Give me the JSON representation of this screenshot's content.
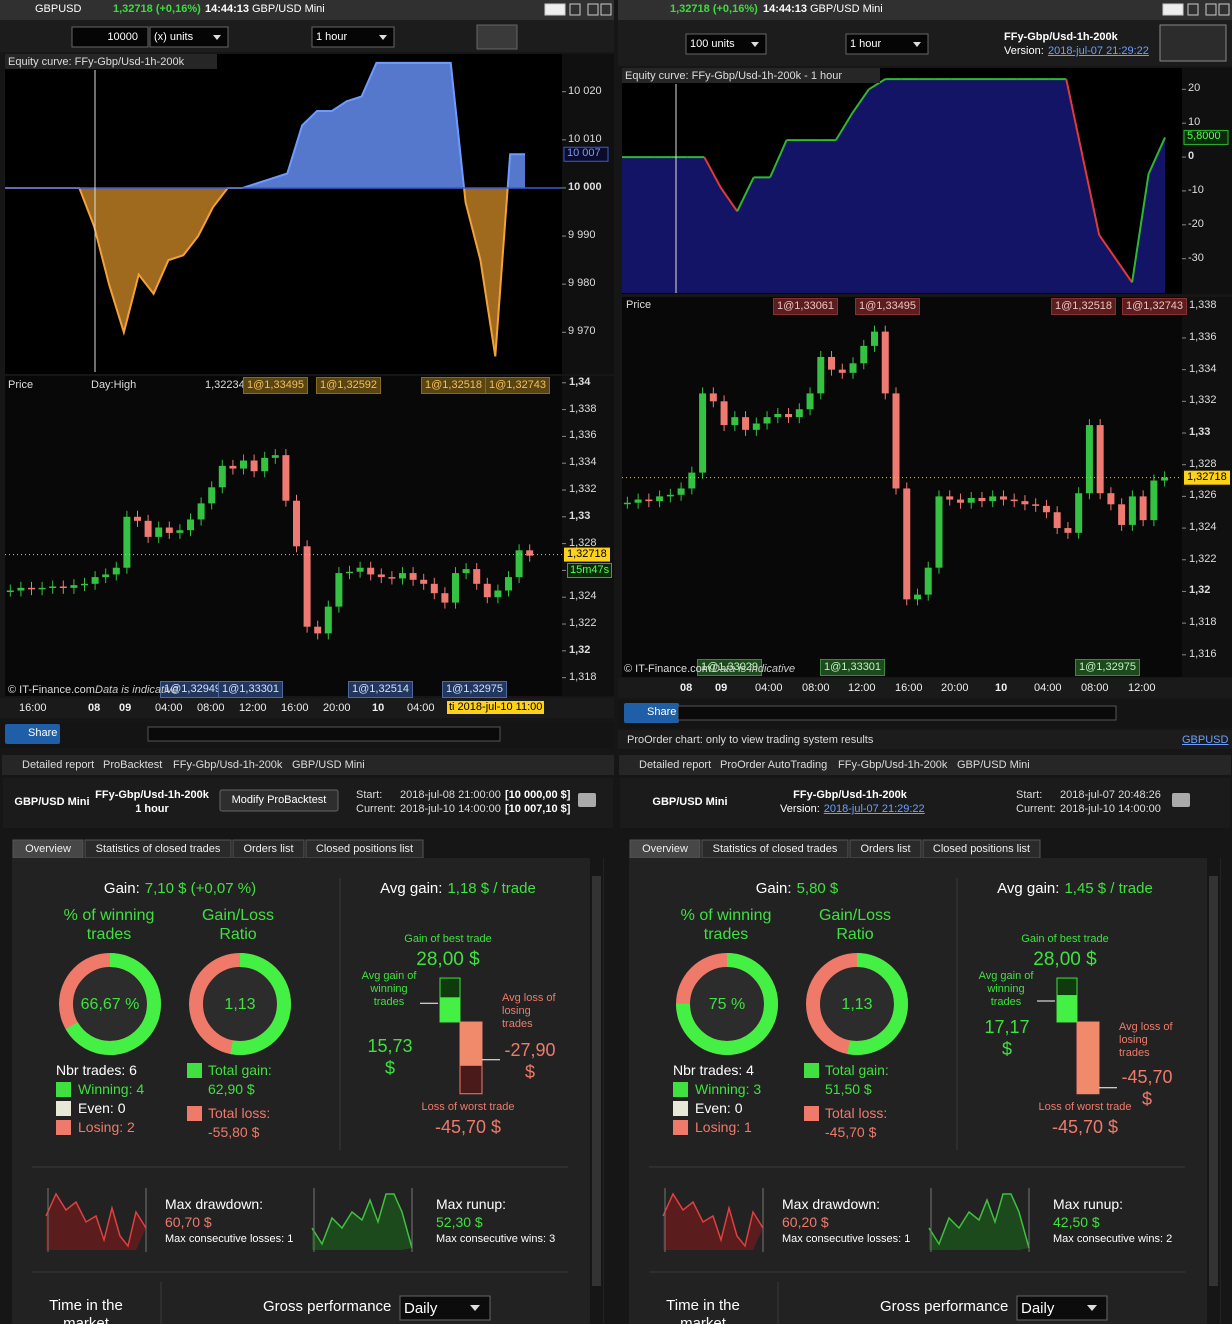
{
  "left": {
    "bar": {
      "symbol": "GBPUSD",
      "price": "1,32718 (+0,16%)",
      "time": "14:44:13",
      "name": "GBP/USD Mini"
    },
    "toolbar": {
      "units": "10000",
      "units_type": "(x) units",
      "timeframe": "1 hour"
    },
    "equity": {
      "label": "Equity curve: FFy-Gbp/Usd-1h-200k",
      "ylim": [
        9963,
        10027
      ],
      "yticks": [
        {
          "value": 10020,
          "label": "10 020"
        },
        {
          "value": 10010,
          "label": "10 010"
        },
        {
          "value": 10000,
          "label": "10 000"
        },
        {
          "value": 9990,
          "label": "9 990"
        },
        {
          "value": 9980,
          "label": "9 980"
        },
        {
          "value": 9970,
          "label": "9 970"
        }
      ],
      "current": {
        "value": 10007,
        "label": "10 007"
      },
      "values": [
        10000,
        10000,
        10000,
        10000,
        10000,
        10000,
        9992,
        9980,
        9970,
        9982,
        9978,
        9985,
        9986,
        9990,
        9996,
        10000,
        10000,
        10001,
        10002,
        10003,
        10013,
        10016,
        10016,
        10018,
        10019,
        10026,
        10026,
        10026,
        10026,
        10026,
        10026,
        9997,
        9985,
        9965,
        10007,
        10007
      ]
    },
    "price": {
      "label": "Price",
      "day_high": "Day:High",
      "day_value": "1,32234",
      "ylim": [
        1.3176,
        1.3414
      ],
      "yticks": [
        {
          "value": 1.34,
          "label": "1,34"
        },
        {
          "value": 1.338,
          "label": "1,338"
        },
        {
          "value": 1.336,
          "label": "1,336"
        },
        {
          "value": 1.334,
          "label": "1,334"
        },
        {
          "value": 1.332,
          "label": "1,332"
        },
        {
          "value": 1.33,
          "label": "1,33"
        },
        {
          "value": 1.328,
          "label": "1,328"
        },
        {
          "value": 1.326,
          "label": "1,326"
        },
        {
          "value": 1.324,
          "label": "1,324"
        },
        {
          "value": 1.322,
          "label": "1,322"
        },
        {
          "value": 1.32,
          "label": "1,32"
        },
        {
          "value": 1.318,
          "label": "1,318"
        }
      ],
      "closes": [
        1.3245,
        1.3247,
        1.3246,
        1.3247,
        1.3248,
        1.3247,
        1.3249,
        1.325,
        1.3255,
        1.3257,
        1.3262,
        1.33,
        1.3297,
        1.3285,
        1.3292,
        1.3288,
        1.329,
        1.3298,
        1.331,
        1.3322,
        1.3338,
        1.3336,
        1.3342,
        1.3334,
        1.3344,
        1.3346,
        1.3312,
        1.3278,
        1.3218,
        1.3213,
        1.3233,
        1.3258,
        1.3259,
        1.3262,
        1.3257,
        1.3255,
        1.3254,
        1.3258,
        1.3253,
        1.325,
        1.3243,
        1.3236,
        1.3258,
        1.3261,
        1.325,
        1.324,
        1.3245,
        1.3255,
        1.3275,
        1.3271
      ],
      "current": {
        "value": 1.32718,
        "label": "1,32718"
      },
      "countdown": "15m47s",
      "orders_top": [
        "1@1,33495",
        "1@1,32592",
        "1@1,32518",
        "1@1,32743"
      ],
      "orders_bottom": [
        "1@1,32949",
        "1@1,33301",
        "1@1,32514",
        "1@1,32975"
      ],
      "copyright": "© IT-Finance.com",
      "disclaimer": "Data is indicative",
      "xlabels": [
        "16:00",
        "08",
        "09",
        "04:00",
        "08:00",
        "12:00",
        "16:00",
        "20:00",
        "10",
        "04:00"
      ],
      "cursor_time": "ti 2018-jul-10 11:00"
    },
    "share": "Share"
  },
  "right": {
    "bar": {
      "price": "1,32718 (+0,16%)",
      "time": "14:44:13",
      "name": "GBP/USD Mini"
    },
    "toolbar": {
      "units": "100 units",
      "timeframe": "1 hour"
    },
    "system": {
      "name": "FFy-Gbp/Usd-1h-200k",
      "version_label": "Version:",
      "version": "2018-jul-07 21:29:22"
    },
    "equity": {
      "label": "Equity curve: FFy-Gbp/Usd-1h-200k - 1 hour",
      "ylim": [
        -36,
        26
      ],
      "yticks": [
        20,
        10,
        0,
        -10,
        -20,
        -30
      ],
      "current": {
        "value": 5.8,
        "label": "5,8000"
      },
      "values": [
        0,
        0,
        0,
        0,
        0,
        0,
        -9,
        -16,
        -6,
        -6,
        5,
        5,
        5,
        5,
        13,
        20,
        23,
        23,
        23,
        23,
        23,
        23,
        23,
        23,
        23,
        23,
        23,
        23,
        0,
        -23,
        -30,
        -37,
        -5,
        5.8
      ]
    },
    "price": {
      "label": "Price",
      "ylim": [
        1.3146,
        1.3389
      ],
      "yticks": [
        {
          "value": 1.338,
          "label": "1,338"
        },
        {
          "value": 1.336,
          "label": "1,336"
        },
        {
          "value": 1.334,
          "label": "1,334"
        },
        {
          "value": 1.332,
          "label": "1,332"
        },
        {
          "value": 1.33,
          "label": "1,33"
        },
        {
          "value": 1.328,
          "label": "1,328"
        },
        {
          "value": 1.326,
          "label": "1,326"
        },
        {
          "value": 1.324,
          "label": "1,324"
        },
        {
          "value": 1.322,
          "label": "1,322"
        },
        {
          "value": 1.32,
          "label": "1,32"
        },
        {
          "value": 1.318,
          "label": "1,318"
        },
        {
          "value": 1.316,
          "label": "1,316"
        }
      ],
      "closes": [
        1.3256,
        1.3258,
        1.3257,
        1.326,
        1.3261,
        1.3265,
        1.3275,
        1.3325,
        1.332,
        1.3305,
        1.331,
        1.3302,
        1.3306,
        1.331,
        1.3312,
        1.331,
        1.3315,
        1.3325,
        1.3348,
        1.334,
        1.3338,
        1.3344,
        1.3355,
        1.3364,
        1.3325,
        1.3265,
        1.3195,
        1.3198,
        1.3215,
        1.326,
        1.3258,
        1.3256,
        1.3259,
        1.3257,
        1.326,
        1.3258,
        1.3257,
        1.3255,
        1.3254,
        1.325,
        1.324,
        1.3237,
        1.3262,
        1.3305,
        1.3262,
        1.3255,
        1.3242,
        1.326,
        1.3245,
        1.327,
        1.3272
      ],
      "current": {
        "value": 1.32718,
        "label": "1,32718"
      },
      "orders_top": [
        "1@1,33061",
        "1@1,33495",
        "1@1,32518",
        "1@1,32743"
      ],
      "orders_bottom": [
        "1@1,33029",
        "1@1,33301",
        "1@1,32975"
      ],
      "copyright": "© IT-Finance.com",
      "disclaimer": "Data is indicative",
      "xlabels": [
        "08",
        "09",
        "04:00",
        "08:00",
        "12:00",
        "16:00",
        "20:00",
        "10",
        "04:00",
        "08:00",
        "12:00"
      ]
    },
    "share": "Share",
    "status": "ProOrder chart: only to view trading system results",
    "status_link": "GBPUSD"
  },
  "reports": [
    {
      "header": [
        "Detailed report",
        "ProBacktest",
        "FFy-Gbp/Usd-1h-200k",
        "GBP/USD Mini"
      ],
      "instrument": "GBP/USD Mini",
      "system": "FFy-Gbp/Usd-1h-200k",
      "timeframe": "1 hour",
      "button": "Modify ProBacktest",
      "start_label": "Start:",
      "start": "2018-jul-08 21:00:00",
      "start_capital": "[10 000,00 $]",
      "current_label": "Current:",
      "current": "2018-jul-10 14:00:00",
      "current_capital": "[10 007,10 $]",
      "tabs": [
        "Overview",
        "Statistics of closed trades",
        "Orders list",
        "Closed positions list"
      ],
      "gain_label": "Gain:",
      "gain": "7,10 $ (+0,07 %)",
      "win_title": "% of winning trades",
      "ratio_title": "Gain/Loss Ratio",
      "win_pct": {
        "value": 66.67,
        "label": "66,67 %"
      },
      "ratio": "1,13",
      "nbr": "Nbr trades: 6",
      "winning": "Winning: 4",
      "even": "Even: 0",
      "losing": "Losing: 2",
      "total_gain_label": "Total gain:",
      "total_gain": {
        "value": 62.9,
        "label": "62,90 $"
      },
      "total_loss_label": "Total loss:",
      "total_loss": {
        "value": -55.8,
        "label": "-55,80 $"
      },
      "avg_gain_label": "Avg gain:",
      "avg_gain": "1,18 $ / trade",
      "best_label": "Gain of best trade",
      "best": {
        "value": 28,
        "label": "28,00 $"
      },
      "avg_win_label": "Avg gain of winning trades",
      "avg_win": {
        "value": 15.73,
        "label": "15,73 $"
      },
      "avg_loss_label": "Avg loss of losing trades",
      "avg_loss": {
        "value": -27.9,
        "label": "-27,90 $"
      },
      "worst_label": "Loss of worst trade",
      "worst": {
        "value": -45.7,
        "label": "-45,70 $"
      },
      "drawdown_label": "Max drawdown:",
      "drawdown": "60,70 $",
      "losses": "Max consecutive losses: 1",
      "runup_label": "Max runup:",
      "runup": "52,30 $",
      "wins": "Max consecutive wins: 3",
      "time_label": "Time in the market",
      "gross_label": "Gross performance",
      "gross_period": "Daily"
    },
    {
      "header": [
        "Detailed report",
        "ProOrder AutoTrading",
        "FFy-Gbp/Usd-1h-200k",
        "GBP/USD Mini"
      ],
      "instrument": "GBP/USD Mini",
      "system": "FFy-Gbp/Usd-1h-200k",
      "version_label": "Version:",
      "version": "2018-jul-07 21:29:22",
      "start_label": "Start:",
      "start": "2018-jul-07 20:48:26",
      "current_label": "Current:",
      "current": "2018-jul-10 14:00:00",
      "tabs": [
        "Overview",
        "Statistics of closed trades",
        "Orders list",
        "Closed positions list"
      ],
      "gain_label": "Gain:",
      "gain": "5,80 $",
      "win_title": "% of winning trades",
      "ratio_title": "Gain/Loss Ratio",
      "win_pct": {
        "value": 75,
        "label": "75 %"
      },
      "ratio": "1,13",
      "nbr": "Nbr trades: 4",
      "winning": "Winning: 3",
      "even": "Even: 0",
      "losing": "Losing: 1",
      "total_gain_label": "Total gain:",
      "total_gain": {
        "value": 51.5,
        "label": "51,50 $"
      },
      "total_loss_label": "Total loss:",
      "total_loss": {
        "value": -45.7,
        "label": "-45,70 $"
      },
      "avg_gain_label": "Avg gain:",
      "avg_gain": "1,45 $ / trade",
      "best_label": "Gain of best trade",
      "best": {
        "value": 28,
        "label": "28,00 $"
      },
      "avg_win_label": "Avg gain of winning trades",
      "avg_win": {
        "value": 17.17,
        "label": "17,17 $"
      },
      "avg_loss_label": "Avg loss of losing trades",
      "avg_loss": {
        "value": -45.7,
        "label": "-45,70 $"
      },
      "worst_label": "Loss of worst trade",
      "worst": {
        "value": -45.7,
        "label": "-45,70 $"
      },
      "drawdown_label": "Max drawdown:",
      "drawdown": "60,20 $",
      "losses": "Max consecutive losses: 1",
      "runup_label": "Max runup:",
      "runup": "42,50 $",
      "wins": "Max consecutive wins: 2",
      "time_label": "Time in the market",
      "gross_label": "Gross performance",
      "gross_period": "Daily"
    }
  ]
}
